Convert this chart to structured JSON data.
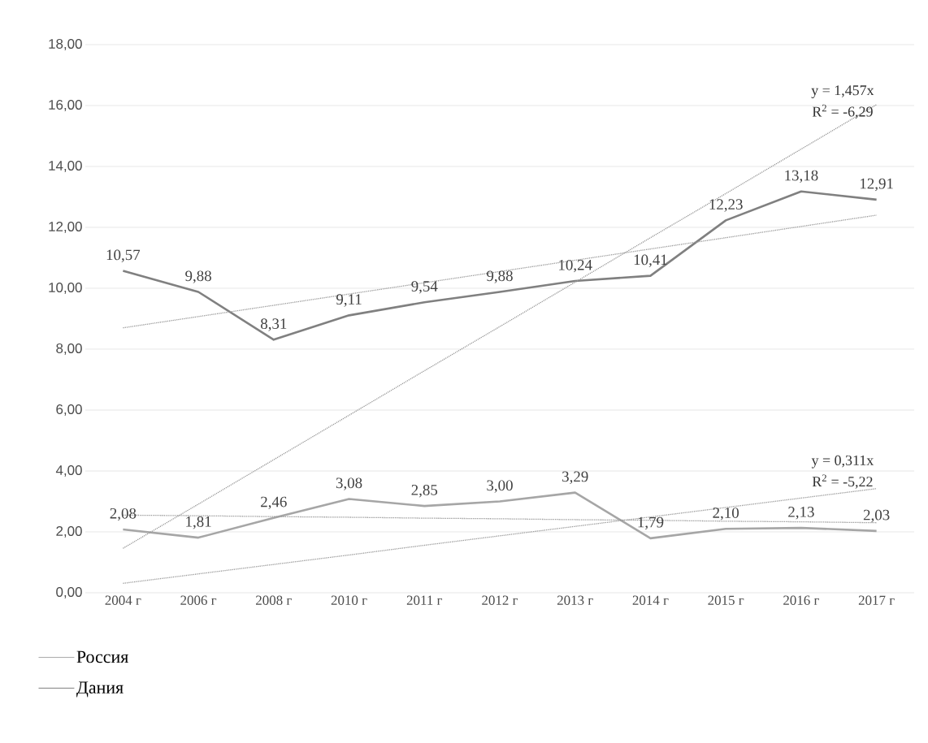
{
  "chart_data": {
    "type": "line",
    "categories": [
      "2004 г",
      "2006 г",
      "2008 г",
      "2010 г",
      "2011 г",
      "2012 г",
      "2013 г",
      "2014 г",
      "2015 г",
      "2016 г",
      "2017 г"
    ],
    "series": [
      {
        "name": "Россия",
        "color": "#a6a6a6",
        "values": [
          2.08,
          1.81,
          2.46,
          3.08,
          2.85,
          3.0,
          3.29,
          1.79,
          2.1,
          2.13,
          2.03
        ],
        "value_labels": [
          "2,08",
          "1,81",
          "2,46",
          "3,08",
          "2,85",
          "3,00",
          "3,29",
          "1,79",
          "2,10",
          "2,13",
          "2,03"
        ]
      },
      {
        "name": "Дания",
        "color": "#808080",
        "values": [
          10.57,
          9.88,
          8.31,
          9.11,
          9.54,
          9.88,
          10.24,
          10.41,
          12.23,
          13.18,
          12.91
        ],
        "value_labels": [
          "10,57",
          "9,88",
          "8,31",
          "9,11",
          "9,54",
          "9,88",
          "10,24",
          "10,41",
          "12,23",
          "13,18",
          "12,91"
        ]
      },
      {
        "type": "line",
        "line_style": "dotted",
        "color": "#999999",
        "values": [
          2.55,
          2.53,
          2.5,
          2.48,
          2.45,
          2.43,
          2.4,
          2.38,
          2.35,
          2.33,
          2.3
        ]
      },
      {
        "type": "line",
        "line_style": "dotted",
        "color": "#999999",
        "values": [
          0.31,
          0.62,
          0.93,
          1.24,
          1.56,
          1.87,
          2.18,
          2.49,
          2.8,
          3.11,
          3.42
        ]
      },
      {
        "type": "line",
        "line_style": "dotted",
        "color": "#999999",
        "values": [
          8.7,
          9.07,
          9.44,
          9.81,
          10.18,
          10.55,
          10.92,
          11.29,
          11.66,
          12.03,
          12.4
        ]
      },
      {
        "type": "line",
        "line_style": "dotted",
        "color": "#999999",
        "values": [
          1.46,
          2.91,
          4.37,
          5.83,
          7.29,
          8.74,
          10.2,
          11.66,
          13.11,
          14.57,
          16.03
        ]
      }
    ],
    "annotations": [
      "y = 1,457x",
      "R$^{2}$ = -6,29",
      "y = 0,311x",
      "R$^{2}$ = -5,22"
    ],
    "ylim": [
      0,
      18
    ],
    "yticks": [
      {
        "value": 0,
        "label": "0,00"
      },
      {
        "value": 2,
        "label": "2,00"
      },
      {
        "value": 4,
        "label": "4,00"
      },
      {
        "value": 6,
        "label": "6,00"
      },
      {
        "value": 8,
        "label": "8,00"
      },
      {
        "value": 10,
        "label": "10,00"
      },
      {
        "value": 12,
        "label": "12,00"
      },
      {
        "value": 14,
        "label": "14,00"
      },
      {
        "value": 16,
        "label": "16,00"
      },
      {
        "value": 18,
        "label": "18,00"
      }
    ],
    "grid": "y",
    "legend": "bottom",
    "marker": "none",
    "line_style": "solid"
  }
}
